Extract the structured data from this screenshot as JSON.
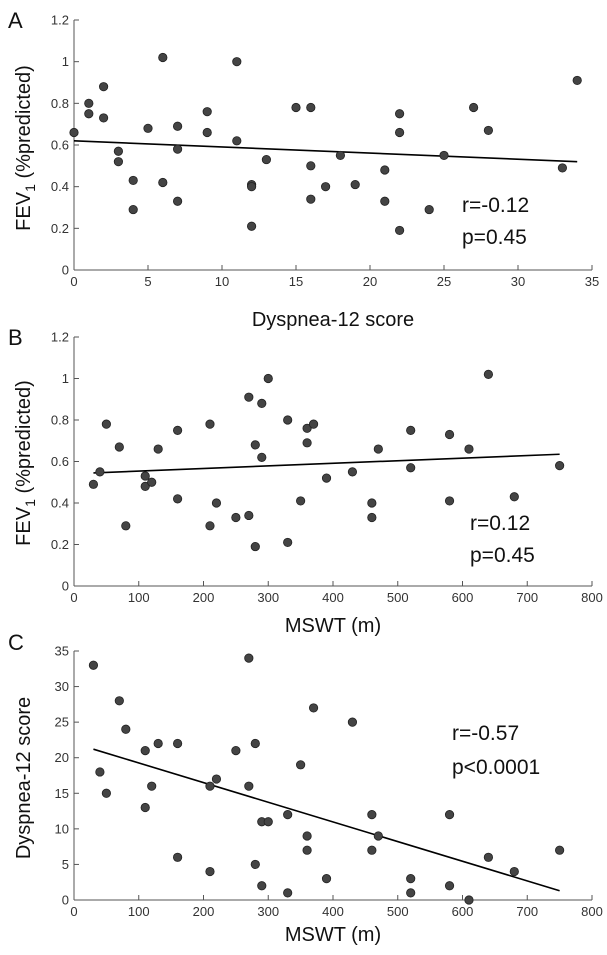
{
  "chart_data": [
    {
      "type": "scatter",
      "panel": "A",
      "xlabel": "Dyspnea-12 score",
      "ylabel_main": "FEV",
      "ylabel_sub": "1",
      "ylabel_rest": " (%predicted)",
      "xlim": [
        0,
        35
      ],
      "ylim": [
        0,
        1.2
      ],
      "xticks": [
        0,
        5,
        10,
        15,
        20,
        25,
        30,
        35
      ],
      "yticks": [
        0,
        0.2,
        0.4,
        0.6,
        0.8,
        1,
        1.2
      ],
      "annotations": [
        "r=-0.12",
        "p=0.45"
      ],
      "fit_line": {
        "x": [
          0,
          34
        ],
        "y": [
          0.62,
          0.52
        ]
      },
      "points": [
        {
          "x": 0,
          "y": 0.66
        },
        {
          "x": 1,
          "y": 0.8
        },
        {
          "x": 1,
          "y": 0.75
        },
        {
          "x": 2,
          "y": 0.88
        },
        {
          "x": 2,
          "y": 0.73
        },
        {
          "x": 3,
          "y": 0.57
        },
        {
          "x": 3,
          "y": 0.52
        },
        {
          "x": 4,
          "y": 0.43
        },
        {
          "x": 4,
          "y": 0.29
        },
        {
          "x": 5,
          "y": 0.68
        },
        {
          "x": 6,
          "y": 1.02
        },
        {
          "x": 6,
          "y": 0.42
        },
        {
          "x": 7,
          "y": 0.69
        },
        {
          "x": 7,
          "y": 0.58
        },
        {
          "x": 7,
          "y": 0.33
        },
        {
          "x": 9,
          "y": 0.76
        },
        {
          "x": 9,
          "y": 0.66
        },
        {
          "x": 11,
          "y": 1.0
        },
        {
          "x": 11,
          "y": 0.62
        },
        {
          "x": 12,
          "y": 0.41
        },
        {
          "x": 12,
          "y": 0.4
        },
        {
          "x": 12,
          "y": 0.21
        },
        {
          "x": 13,
          "y": 0.53
        },
        {
          "x": 15,
          "y": 0.78
        },
        {
          "x": 16,
          "y": 0.78
        },
        {
          "x": 16,
          "y": 0.5
        },
        {
          "x": 16,
          "y": 0.34
        },
        {
          "x": 17,
          "y": 0.4
        },
        {
          "x": 18,
          "y": 0.55
        },
        {
          "x": 19,
          "y": 0.41
        },
        {
          "x": 21,
          "y": 0.48
        },
        {
          "x": 21,
          "y": 0.33
        },
        {
          "x": 22,
          "y": 0.75
        },
        {
          "x": 22,
          "y": 0.66
        },
        {
          "x": 22,
          "y": 0.19
        },
        {
          "x": 24,
          "y": 0.29
        },
        {
          "x": 25,
          "y": 0.55
        },
        {
          "x": 27,
          "y": 0.78
        },
        {
          "x": 28,
          "y": 0.67
        },
        {
          "x": 33,
          "y": 0.49
        },
        {
          "x": 34,
          "y": 0.91
        }
      ]
    },
    {
      "type": "scatter",
      "panel": "B",
      "xlabel": "MSWT (m)",
      "ylabel_main": "FEV",
      "ylabel_sub": "1",
      "ylabel_rest": " (%predicted)",
      "xlim": [
        0,
        800
      ],
      "ylim": [
        0,
        1.2
      ],
      "xticks": [
        0,
        100,
        200,
        300,
        400,
        500,
        600,
        700,
        800
      ],
      "yticks": [
        0,
        0.2,
        0.4,
        0.6,
        0.8,
        1,
        1.2
      ],
      "annotations": [
        "r=0.12",
        "p=0.45"
      ],
      "fit_line": {
        "x": [
          30,
          750
        ],
        "y": [
          0.545,
          0.635
        ]
      },
      "points": [
        {
          "x": 30,
          "y": 0.49
        },
        {
          "x": 40,
          "y": 0.55
        },
        {
          "x": 50,
          "y": 0.78
        },
        {
          "x": 70,
          "y": 0.67
        },
        {
          "x": 80,
          "y": 0.29
        },
        {
          "x": 110,
          "y": 0.53
        },
        {
          "x": 110,
          "y": 0.48
        },
        {
          "x": 120,
          "y": 0.5
        },
        {
          "x": 130,
          "y": 0.66
        },
        {
          "x": 160,
          "y": 0.75
        },
        {
          "x": 160,
          "y": 0.42
        },
        {
          "x": 210,
          "y": 0.78
        },
        {
          "x": 210,
          "y": 0.29
        },
        {
          "x": 220,
          "y": 0.4
        },
        {
          "x": 250,
          "y": 0.33
        },
        {
          "x": 270,
          "y": 0.91
        },
        {
          "x": 270,
          "y": 0.34
        },
        {
          "x": 280,
          "y": 0.68
        },
        {
          "x": 280,
          "y": 0.19
        },
        {
          "x": 290,
          "y": 0.88
        },
        {
          "x": 290,
          "y": 0.62
        },
        {
          "x": 300,
          "y": 1.0
        },
        {
          "x": 330,
          "y": 0.8
        },
        {
          "x": 330,
          "y": 0.21
        },
        {
          "x": 350,
          "y": 0.41
        },
        {
          "x": 360,
          "y": 0.76
        },
        {
          "x": 360,
          "y": 0.69
        },
        {
          "x": 370,
          "y": 0.78
        },
        {
          "x": 390,
          "y": 0.52
        },
        {
          "x": 430,
          "y": 0.55
        },
        {
          "x": 460,
          "y": 0.4
        },
        {
          "x": 460,
          "y": 0.33
        },
        {
          "x": 470,
          "y": 0.66
        },
        {
          "x": 520,
          "y": 0.75
        },
        {
          "x": 520,
          "y": 0.57
        },
        {
          "x": 580,
          "y": 0.73
        },
        {
          "x": 580,
          "y": 0.41
        },
        {
          "x": 610,
          "y": 0.66
        },
        {
          "x": 640,
          "y": 1.02
        },
        {
          "x": 680,
          "y": 0.43
        },
        {
          "x": 750,
          "y": 0.58
        }
      ]
    },
    {
      "type": "scatter",
      "panel": "C",
      "xlabel": "MSWT (m)",
      "ylabel_main": "Dyspnea-12 score",
      "ylabel_sub": "",
      "ylabel_rest": "",
      "xlim": [
        0,
        800
      ],
      "ylim": [
        0,
        35
      ],
      "xticks": [
        0,
        100,
        200,
        300,
        400,
        500,
        600,
        700,
        800
      ],
      "yticks": [
        0,
        5,
        10,
        15,
        20,
        25,
        30,
        35
      ],
      "annotations": [
        "r=-0.57",
        "p<0.0001"
      ],
      "fit_line": {
        "x": [
          30,
          750
        ],
        "y": [
          21.2,
          1.3
        ]
      },
      "points": [
        {
          "x": 30,
          "y": 33
        },
        {
          "x": 40,
          "y": 18
        },
        {
          "x": 50,
          "y": 15
        },
        {
          "x": 70,
          "y": 28
        },
        {
          "x": 80,
          "y": 24
        },
        {
          "x": 110,
          "y": 21
        },
        {
          "x": 110,
          "y": 13
        },
        {
          "x": 120,
          "y": 16
        },
        {
          "x": 130,
          "y": 22
        },
        {
          "x": 160,
          "y": 22
        },
        {
          "x": 160,
          "y": 6
        },
        {
          "x": 210,
          "y": 16
        },
        {
          "x": 210,
          "y": 4
        },
        {
          "x": 220,
          "y": 17
        },
        {
          "x": 250,
          "y": 21
        },
        {
          "x": 270,
          "y": 34
        },
        {
          "x": 270,
          "y": 16
        },
        {
          "x": 280,
          "y": 22
        },
        {
          "x": 280,
          "y": 5
        },
        {
          "x": 290,
          "y": 11
        },
        {
          "x": 290,
          "y": 2
        },
        {
          "x": 300,
          "y": 11
        },
        {
          "x": 330,
          "y": 12
        },
        {
          "x": 330,
          "y": 1
        },
        {
          "x": 350,
          "y": 19
        },
        {
          "x": 360,
          "y": 9
        },
        {
          "x": 360,
          "y": 7
        },
        {
          "x": 370,
          "y": 27
        },
        {
          "x": 390,
          "y": 3
        },
        {
          "x": 430,
          "y": 25
        },
        {
          "x": 460,
          "y": 12
        },
        {
          "x": 460,
          "y": 7
        },
        {
          "x": 470,
          "y": 9
        },
        {
          "x": 520,
          "y": 3
        },
        {
          "x": 520,
          "y": 1
        },
        {
          "x": 580,
          "y": 12
        },
        {
          "x": 580,
          "y": 2
        },
        {
          "x": 610,
          "y": 0
        },
        {
          "x": 640,
          "y": 6
        },
        {
          "x": 680,
          "y": 4
        },
        {
          "x": 750,
          "y": 7
        }
      ]
    }
  ]
}
